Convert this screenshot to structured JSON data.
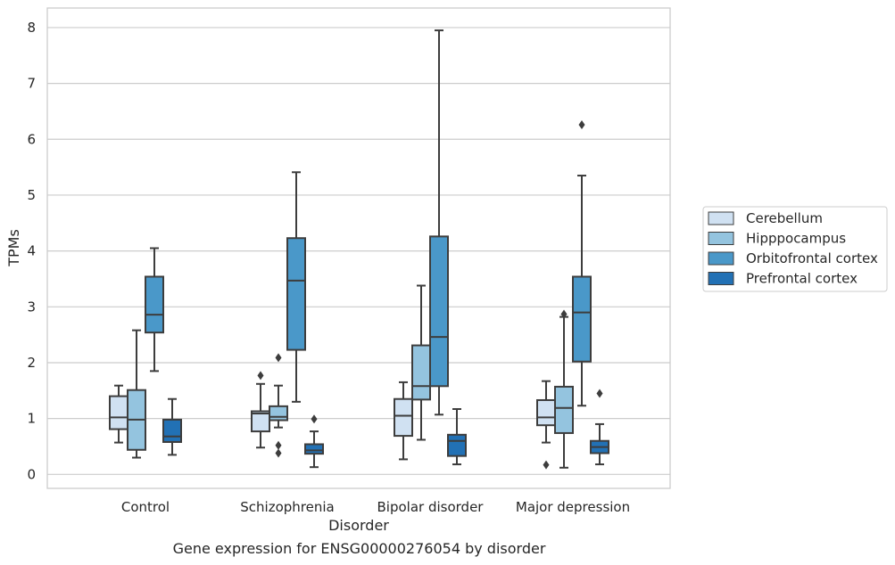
{
  "caption": "Gene expression for ENSG00000276054 by disorder",
  "chart_data": {
    "type": "box",
    "title": "",
    "xlabel": "Disorder",
    "ylabel": "TPMs",
    "ylim": [
      -0.25,
      8.35
    ],
    "yticks": [
      0,
      1,
      2,
      3,
      4,
      5,
      6,
      7,
      8
    ],
    "grid": "horizontal",
    "legend_position": "right",
    "categories": [
      "Control",
      "Schizophrenia",
      "Bipolar disorder",
      "Major depression"
    ],
    "series": [
      {
        "name": "Cerebellum",
        "color": "#d0e1f2",
        "boxes": [
          {
            "whisker_low": 0.57,
            "q1": 0.81,
            "median": 1.02,
            "q3": 1.4,
            "whisker_high": 1.59,
            "outliers": []
          },
          {
            "whisker_low": 0.48,
            "q1": 0.77,
            "median": 1.09,
            "q3": 1.13,
            "whisker_high": 1.62,
            "outliers": [
              1.77
            ]
          },
          {
            "whisker_low": 0.27,
            "q1": 0.69,
            "median": 1.05,
            "q3": 1.35,
            "whisker_high": 1.65,
            "outliers": []
          },
          {
            "whisker_low": 0.57,
            "q1": 0.88,
            "median": 1.02,
            "q3": 1.33,
            "whisker_high": 1.67,
            "outliers": [
              0.17
            ]
          }
        ]
      },
      {
        "name": "Hipppocampus",
        "color": "#94c4df",
        "boxes": [
          {
            "whisker_low": 0.3,
            "q1": 0.44,
            "median": 0.98,
            "q3": 1.51,
            "whisker_high": 2.58,
            "outliers": []
          },
          {
            "whisker_low": 0.84,
            "q1": 0.97,
            "median": 1.03,
            "q3": 1.22,
            "whisker_high": 1.59,
            "outliers": [
              2.09,
              0.52,
              0.38
            ]
          },
          {
            "whisker_low": 0.62,
            "q1": 1.34,
            "median": 1.58,
            "q3": 2.31,
            "whisker_high": 3.38,
            "outliers": []
          },
          {
            "whisker_low": 0.12,
            "q1": 0.74,
            "median": 1.19,
            "q3": 1.57,
            "whisker_high": 2.82,
            "outliers": [
              2.87
            ]
          }
        ]
      },
      {
        "name": "Orbitofrontal cortex",
        "color": "#4a98c9",
        "boxes": [
          {
            "whisker_low": 1.85,
            "q1": 2.54,
            "median": 2.86,
            "q3": 3.54,
            "whisker_high": 4.05,
            "outliers": []
          },
          {
            "whisker_low": 1.3,
            "q1": 2.23,
            "median": 3.47,
            "q3": 4.23,
            "whisker_high": 5.41,
            "outliers": []
          },
          {
            "whisker_low": 1.07,
            "q1": 1.58,
            "median": 2.46,
            "q3": 4.26,
            "whisker_high": 7.95,
            "outliers": []
          },
          {
            "whisker_low": 1.23,
            "q1": 2.02,
            "median": 2.9,
            "q3": 3.54,
            "whisker_high": 5.35,
            "outliers": [
              6.26
            ]
          }
        ]
      },
      {
        "name": "Prefrontal cortex",
        "color": "#2271b5",
        "boxes": [
          {
            "whisker_low": 0.35,
            "q1": 0.58,
            "median": 0.68,
            "q3": 0.98,
            "whisker_high": 1.35,
            "outliers": []
          },
          {
            "whisker_low": 0.13,
            "q1": 0.37,
            "median": 0.43,
            "q3": 0.54,
            "whisker_high": 0.77,
            "outliers": [
              0.99
            ]
          },
          {
            "whisker_low": 0.18,
            "q1": 0.33,
            "median": 0.6,
            "q3": 0.71,
            "whisker_high": 1.17,
            "outliers": []
          },
          {
            "whisker_low": 0.18,
            "q1": 0.38,
            "median": 0.49,
            "q3": 0.6,
            "whisker_high": 0.9,
            "outliers": [
              1.45
            ]
          }
        ]
      }
    ]
  }
}
